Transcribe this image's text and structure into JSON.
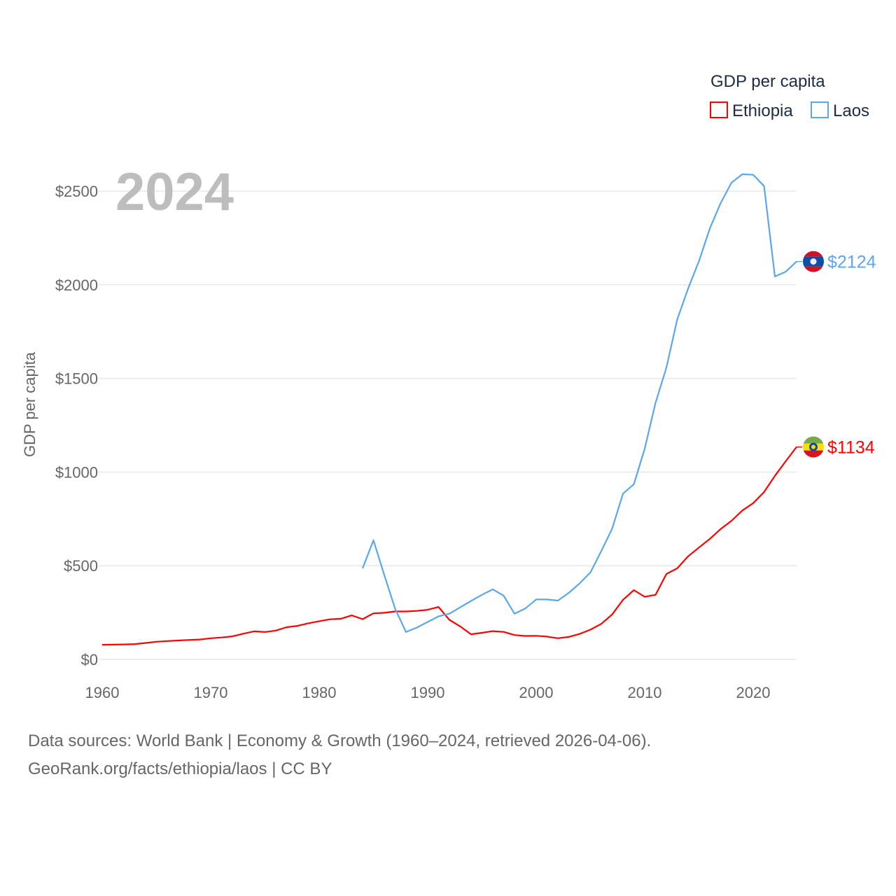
{
  "chart_data": {
    "type": "line",
    "title": "GDP per capita",
    "year_label": "2024",
    "xlabel": "",
    "ylabel": "GDP per capita",
    "xlim": [
      1960,
      2024
    ],
    "ylim": [
      0,
      2700
    ],
    "x_ticks": [
      "1960",
      "1970",
      "1980",
      "1990",
      "2000",
      "2010",
      "2020"
    ],
    "y_ticks": [
      "$0",
      "$500",
      "$1000",
      "$1500",
      "$2000",
      "$2500"
    ],
    "grid": true,
    "legend_position": "top-right",
    "series": [
      {
        "name": "Ethiopia",
        "color": "#ff0000",
        "end_label": "$1134",
        "flag": "ethiopia-flag",
        "start_year": 1960,
        "values": [
          78,
          79,
          80,
          82,
          88,
          94,
          98,
          101,
          104,
          106,
          113,
          117,
          123,
          137,
          150,
          146,
          154,
          172,
          179,
          193,
          204,
          214,
          217,
          235,
          215,
          246,
          249,
          256,
          256,
          259,
          265,
          280,
          211,
          176,
          134,
          142,
          151,
          147,
          130,
          125,
          126,
          122,
          113,
          120,
          136,
          159,
          190,
          240,
          318,
          370,
          334,
          345,
          456,
          486,
          550,
          597,
          643,
          696,
          740,
          795,
          834,
          893,
          980,
          1058,
          1134
        ]
      },
      {
        "name": "Laos",
        "color": "#5ba7ee",
        "end_label": "$2124",
        "flag": "laos-flag",
        "start_year": 1984,
        "values": [
          486,
          636,
          450,
          270,
          146,
          170,
          200,
          230,
          244,
          278,
          312,
          345,
          374,
          340,
          244,
          272,
          320,
          320,
          314,
          355,
          406,
          465,
          578,
          698,
          885,
          935,
          1125,
          1370,
          1558,
          1815,
          1980,
          2126,
          2300,
          2436,
          2545,
          2590,
          2587,
          2527,
          2044,
          2070,
          2124
        ]
      }
    ]
  },
  "footer": {
    "line1": "Data sources: World Bank | Economy & Growth (1960–2024, retrieved 2026-04-06).",
    "line2": "GeoRank.org/facts/ethiopia/laos | CC BY"
  }
}
